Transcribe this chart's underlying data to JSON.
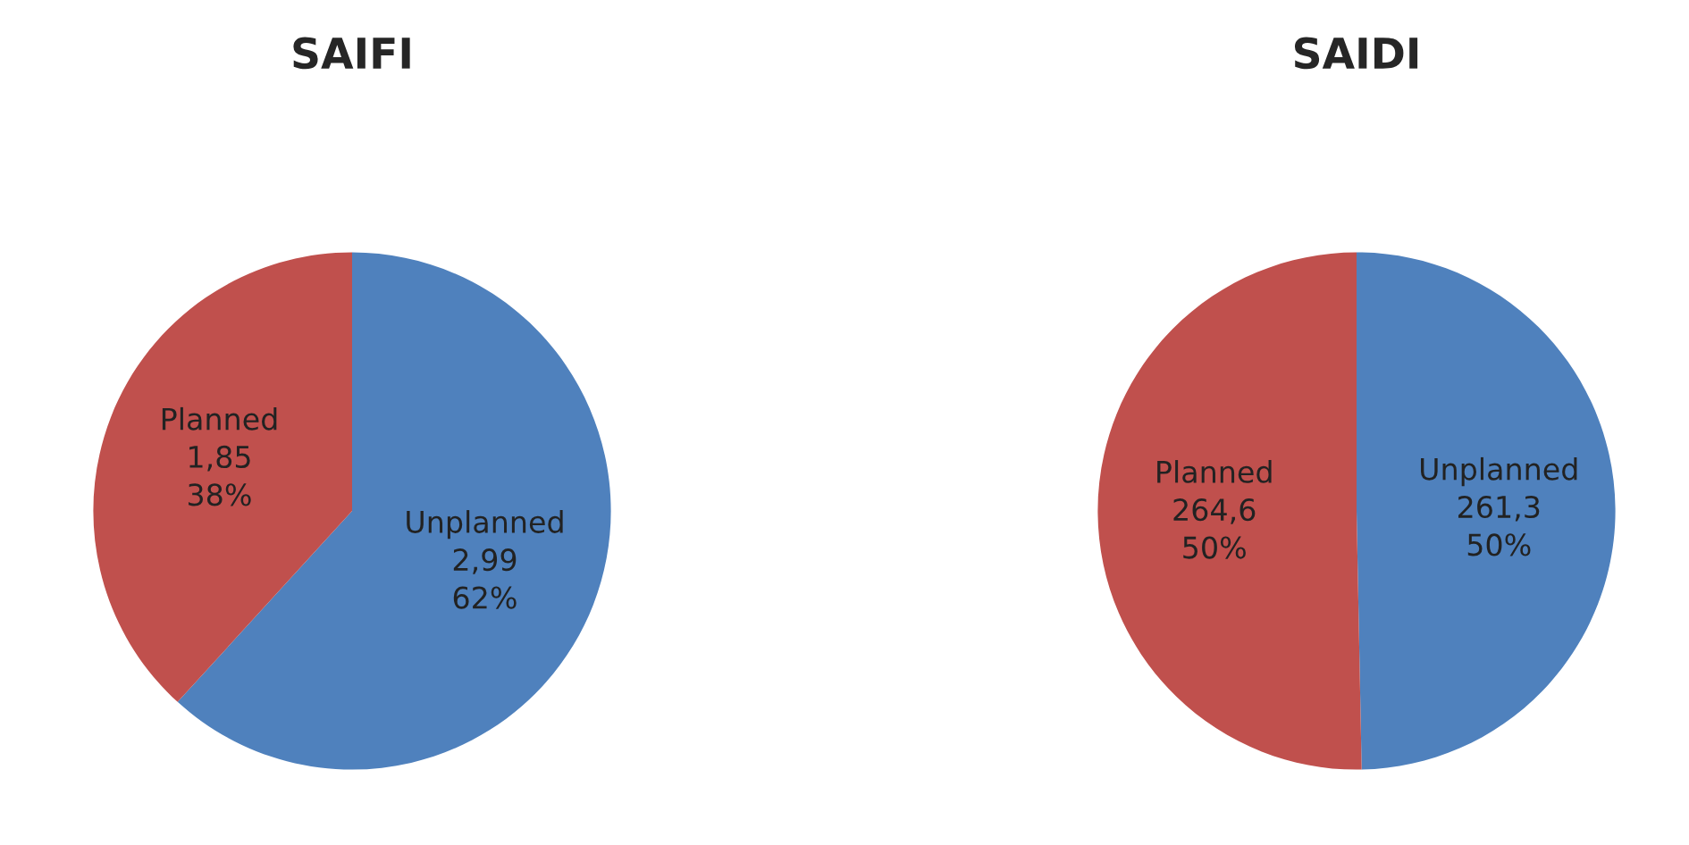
{
  "chart_data": [
    {
      "type": "pie",
      "title": "SAIFI",
      "categories": [
        "Unplanned",
        "Planned"
      ],
      "values": [
        2.99,
        1.85
      ],
      "value_labels": [
        "2,99\n62%",
        "1,85\n38%"
      ],
      "colors": [
        "#4f81bd",
        "#c0504d"
      ]
    },
    {
      "type": "pie",
      "title": "SAIDI",
      "categories": [
        "Unplanned",
        "Planned"
      ],
      "values": [
        261.3,
        264.6
      ],
      "value_labels": [
        "261,3\n50%",
        "264,6\n50%"
      ],
      "colors": [
        "#4f81bd",
        "#c0504d"
      ]
    }
  ]
}
